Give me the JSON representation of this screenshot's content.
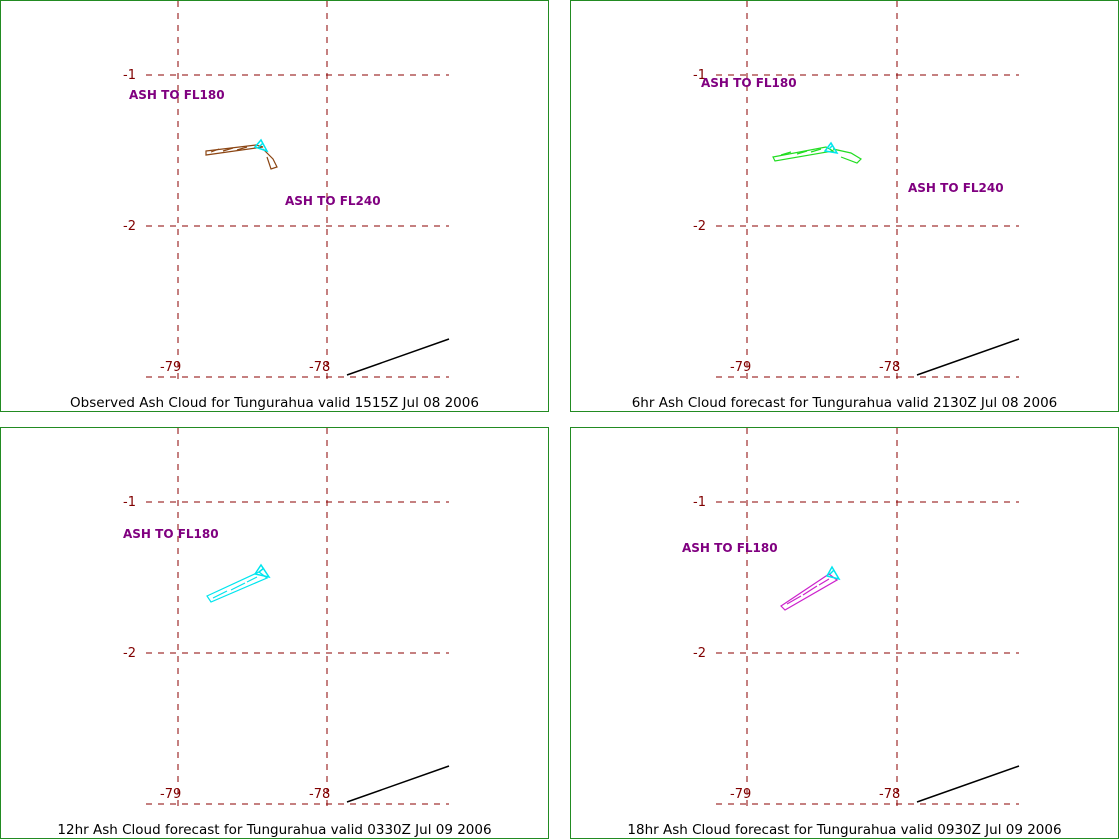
{
  "colors": {
    "grid": "#8b0000",
    "label_lat_lon": "#800000",
    "ash_text": "#800080",
    "panel_border": "#228b22",
    "vent": "#00e5ee",
    "coast": "#000000"
  },
  "panels": [
    {
      "caption": "Observed Ash Cloud for Tungurahua valid 1515Z Jul 08 2006",
      "cloud_color": "#8b4513",
      "lat_labels": [
        "-1",
        "-2"
      ],
      "lon_labels": [
        "-79",
        "-78"
      ],
      "ash_labels": [
        "ASH TO FL180",
        "ASH TO FL240"
      ]
    },
    {
      "caption": "6hr Ash Cloud forecast for Tungurahua valid 2130Z Jul 08 2006",
      "cloud_color": "#22dd22",
      "lat_labels": [
        "-1",
        "-2"
      ],
      "lon_labels": [
        "-79",
        "-78"
      ],
      "ash_labels": [
        "ASH TO FL180",
        "ASH TO FL240"
      ]
    },
    {
      "caption": "12hr Ash Cloud forecast for Tungurahua valid 0330Z Jul 09 2006",
      "cloud_color": "#00e5ee",
      "lat_labels": [
        "-1",
        "-2"
      ],
      "lon_labels": [
        "-79",
        "-78"
      ],
      "ash_labels": [
        "ASH TO FL180"
      ]
    },
    {
      "caption": "18hr Ash Cloud forecast for Tungurahua valid 0930Z Jul 09 2006",
      "cloud_color": "#cc22cc",
      "lat_labels": [
        "-1",
        "-2"
      ],
      "lon_labels": [
        "-79",
        "-78"
      ],
      "ash_labels": [
        "ASH TO FL180"
      ]
    }
  ]
}
